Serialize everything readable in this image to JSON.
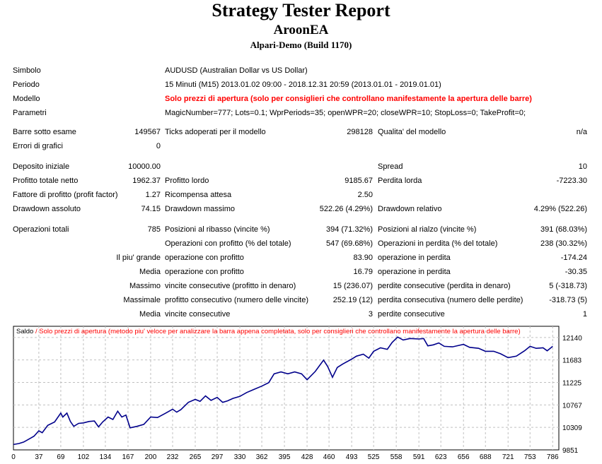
{
  "header": {
    "title": "Strategy Tester Report",
    "ea": "AroonEA",
    "server": "Alpari-Demo (Build 1170)"
  },
  "info": {
    "symbol_label": "Simbolo",
    "symbol": "AUDUSD (Australian Dollar vs US Dollar)",
    "period_label": "Periodo",
    "period": "15 Minuti (M15) 2013.01.02 09:00 - 2018.12.31 20:59 (2013.01.01 - 2019.01.01)",
    "model_label": "Modello",
    "model": "Solo prezzi di apertura (solo per consiglieri che controllano manifestamente la apertura delle barre)",
    "params_label": "Parametri",
    "params": "MagicNumber=777; Lots=0.1; WprPeriods=35; openWPR=20; closeWPR=10; StopLoss=0; TakeProfit=0;"
  },
  "rows": [
    [
      "Barre sotto esame",
      "149567",
      "Ticks adoperati per il modello",
      "298128",
      "Qualita' del modello",
      "n/a"
    ],
    [
      "Errori di grafici",
      "0",
      "",
      "",
      "",
      ""
    ],
    [
      "Deposito iniziale",
      "10000.00",
      "",
      "",
      "Spread",
      "10"
    ],
    [
      "Profitto totale netto",
      "1962.37",
      "Profitto lordo",
      "9185.67",
      "Perdita lorda",
      "-7223.30"
    ],
    [
      "Fattore di profitto (profit factor)",
      "1.27",
      "Ricompensa attesa",
      "2.50",
      "",
      ""
    ],
    [
      "Drawdown assoluto",
      "74.15",
      "Drawdown massimo",
      "522.26 (4.29%)",
      "Drawdown relativo",
      "4.29% (522.26)"
    ],
    [
      "Operazioni totali",
      "785",
      "Posizioni al ribasso (vincite %)",
      "394 (71.32%)",
      "Posizioni al rialzo (vincite %)",
      "391 (68.03%)"
    ],
    [
      "",
      "",
      "Operazioni con profitto (% del totale)",
      "547 (69.68%)",
      "Operazioni in perdita (% del totale)",
      "238 (30.32%)"
    ],
    [
      "",
      "Il piu' grande",
      "operazione con profitto",
      "83.90",
      "operazione in perdita",
      "-174.24"
    ],
    [
      "",
      "Media",
      "operazione con profitto",
      "16.79",
      "operazione in perdita",
      "-30.35"
    ],
    [
      "",
      "Massimo",
      "vincite consecutive (profitto in denaro)",
      "15 (236.07)",
      "perdite consecutive (perdita in denaro)",
      "5 (-318.73)"
    ],
    [
      "",
      "Massimale",
      "profitto consecutivo (numero delle vincite)",
      "252.19 (12)",
      "perdita consecutiva (numero delle perdite)",
      "-318.73 (5)"
    ],
    [
      "",
      "Media",
      "vincite consecutive",
      "3",
      "perdite consecutive",
      "1"
    ]
  ],
  "chart_data": {
    "type": "line",
    "legend_series": "Saldo",
    "legend_note": "Solo prezzi di apertura (metodo piu' veloce per analizzare la barra appena completata, solo per consiglieri che controllano manifestamente la apertura delle barre)",
    "colors": {
      "line": "#00008b",
      "note": "#ff0000",
      "grid": "#c0c0c0"
    },
    "grid": true,
    "xlim": [
      0,
      795
    ],
    "ylim": [
      9851,
      12369
    ],
    "x_ticks": [
      "0",
      "37",
      "69",
      "102",
      "134",
      "167",
      "200",
      "232",
      "265",
      "297",
      "330",
      "362",
      "395",
      "428",
      "460",
      "493",
      "525",
      "558",
      "591",
      "623",
      "656",
      "688",
      "721",
      "753",
      "786"
    ],
    "y_ticks": [
      "12140",
      "11683",
      "11225",
      "10767",
      "10309",
      "9851"
    ],
    "series": [
      {
        "name": "Saldo",
        "points": [
          [
            0,
            9960
          ],
          [
            8,
            9980
          ],
          [
            15,
            10010
          ],
          [
            25,
            10090
          ],
          [
            30,
            10130
          ],
          [
            37,
            10240
          ],
          [
            42,
            10200
          ],
          [
            50,
            10350
          ],
          [
            60,
            10420
          ],
          [
            69,
            10600
          ],
          [
            72,
            10520
          ],
          [
            78,
            10600
          ],
          [
            83,
            10430
          ],
          [
            88,
            10330
          ],
          [
            95,
            10390
          ],
          [
            102,
            10400
          ],
          [
            110,
            10430
          ],
          [
            118,
            10440
          ],
          [
            124,
            10320
          ],
          [
            130,
            10420
          ],
          [
            138,
            10520
          ],
          [
            145,
            10470
          ],
          [
            152,
            10640
          ],
          [
            158,
            10520
          ],
          [
            164,
            10560
          ],
          [
            170,
            10300
          ],
          [
            180,
            10330
          ],
          [
            190,
            10370
          ],
          [
            200,
            10520
          ],
          [
            210,
            10510
          ],
          [
            222,
            10600
          ],
          [
            232,
            10680
          ],
          [
            238,
            10620
          ],
          [
            244,
            10670
          ],
          [
            255,
            10820
          ],
          [
            265,
            10880
          ],
          [
            272,
            10840
          ],
          [
            280,
            10950
          ],
          [
            288,
            10860
          ],
          [
            297,
            10920
          ],
          [
            305,
            10820
          ],
          [
            312,
            10850
          ],
          [
            320,
            10900
          ],
          [
            330,
            10940
          ],
          [
            340,
            11020
          ],
          [
            350,
            11080
          ],
          [
            362,
            11150
          ],
          [
            372,
            11220
          ],
          [
            380,
            11400
          ],
          [
            390,
            11440
          ],
          [
            400,
            11400
          ],
          [
            410,
            11440
          ],
          [
            420,
            11400
          ],
          [
            428,
            11280
          ],
          [
            440,
            11450
          ],
          [
            452,
            11680
          ],
          [
            458,
            11550
          ],
          [
            465,
            11330
          ],
          [
            472,
            11530
          ],
          [
            480,
            11600
          ],
          [
            493,
            11700
          ],
          [
            500,
            11760
          ],
          [
            510,
            11800
          ],
          [
            518,
            11720
          ],
          [
            525,
            11860
          ],
          [
            535,
            11930
          ],
          [
            545,
            11900
          ],
          [
            552,
            12040
          ],
          [
            560,
            12150
          ],
          [
            568,
            12090
          ],
          [
            578,
            12120
          ],
          [
            591,
            12110
          ],
          [
            598,
            12120
          ],
          [
            604,
            11970
          ],
          [
            612,
            11990
          ],
          [
            620,
            12030
          ],
          [
            628,
            11960
          ],
          [
            640,
            11950
          ],
          [
            656,
            12000
          ],
          [
            665,
            11940
          ],
          [
            678,
            11920
          ],
          [
            688,
            11860
          ],
          [
            700,
            11860
          ],
          [
            710,
            11810
          ],
          [
            721,
            11730
          ],
          [
            733,
            11760
          ],
          [
            745,
            11870
          ],
          [
            753,
            11960
          ],
          [
            762,
            11920
          ],
          [
            772,
            11930
          ],
          [
            778,
            11870
          ],
          [
            786,
            11960
          ]
        ]
      }
    ]
  }
}
